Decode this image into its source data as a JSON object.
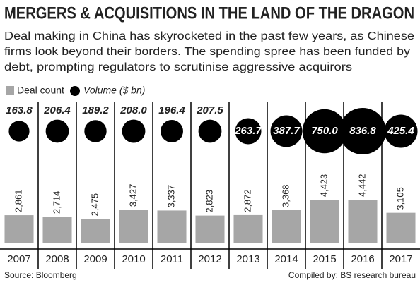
{
  "chart_data": {
    "type": "bar",
    "title": "MERGERS & ACQUISITIONS IN THE LAND OF THE DRAGON",
    "subtitle": [
      "Deal making in China has skyrocketed in the past few years, as Chinese",
      "firms look beyond their borders. The spending spree has been funded by",
      "debt, prompting regulators to scrutinise aggressive acquirors"
    ],
    "categories": [
      "2007",
      "2008",
      "2009",
      "2010",
      "2011",
      "2012",
      "2013",
      "2014",
      "2015",
      "2016",
      "2017"
    ],
    "series": [
      {
        "name": "Deal count",
        "type": "bar",
        "color": "#a6a6a6",
        "values": [
          2861,
          2714,
          2475,
          3427,
          3337,
          2823,
          2872,
          3368,
          4423,
          4442,
          3105
        ],
        "value_labels": [
          "2,861",
          "2,714",
          "2,475",
          "3,427",
          "3,337",
          "2,823",
          "2,872",
          "3,368",
          "4,423",
          "4,442",
          "3,105"
        ]
      },
      {
        "name": "Volume ($ bn)",
        "type": "bubble",
        "color": "#000000",
        "values": [
          163.8,
          206.4,
          189.2,
          208.0,
          196.4,
          207.5,
          263.7,
          387.7,
          750.0,
          836.8,
          425.4
        ],
        "value_labels": [
          "163.8",
          "206.4",
          "189.2",
          "208.0",
          "196.4",
          "207.5",
          "263.7",
          "387.7",
          "750.0",
          "836.8",
          "425.4"
        ]
      }
    ],
    "source": "Source: Bloomberg",
    "credit": "Compiled by: BS research bureau"
  }
}
